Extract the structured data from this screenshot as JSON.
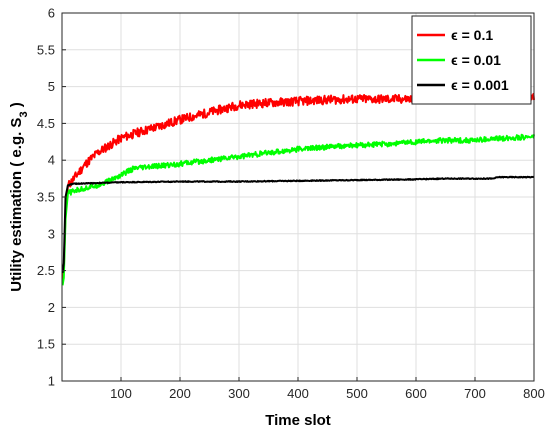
{
  "chart_data": {
    "type": "line",
    "xlabel": "Time slot",
    "ylabel_main": "Utility estimation ( e.g. S",
    "ylabel_sub": "3",
    "ylabel_end": " )",
    "xlim": [
      0,
      800
    ],
    "ylim": [
      1,
      6
    ],
    "xticks": [
      100,
      200,
      300,
      400,
      500,
      600,
      700,
      800
    ],
    "yticks": [
      1,
      1.5,
      2,
      2.5,
      3,
      3.5,
      4,
      4.5,
      5,
      5.5,
      6
    ],
    "grid": true,
    "legend_position": "top-right",
    "series": [
      {
        "name": "ϵ = 0.1",
        "color": "#ff0000",
        "noise": 0.06,
        "points": [
          [
            0,
            2.3
          ],
          [
            3,
            2.5
          ],
          [
            6,
            3.3
          ],
          [
            10,
            3.65
          ],
          [
            20,
            3.75
          ],
          [
            40,
            3.95
          ],
          [
            60,
            4.1
          ],
          [
            80,
            4.2
          ],
          [
            100,
            4.3
          ],
          [
            130,
            4.38
          ],
          [
            160,
            4.45
          ],
          [
            200,
            4.55
          ],
          [
            250,
            4.65
          ],
          [
            300,
            4.75
          ],
          [
            350,
            4.78
          ],
          [
            400,
            4.8
          ],
          [
            450,
            4.82
          ],
          [
            500,
            4.83
          ],
          [
            550,
            4.83
          ],
          [
            600,
            4.83
          ],
          [
            650,
            4.84
          ],
          [
            700,
            4.84
          ],
          [
            750,
            4.85
          ],
          [
            800,
            4.85
          ]
        ]
      },
      {
        "name": "ϵ = 0.01",
        "color": "#00ff00",
        "noise": 0.035,
        "points": [
          [
            0,
            2.25
          ],
          [
            3,
            2.4
          ],
          [
            6,
            3.2
          ],
          [
            10,
            3.55
          ],
          [
            20,
            3.58
          ],
          [
            40,
            3.62
          ],
          [
            60,
            3.66
          ],
          [
            80,
            3.72
          ],
          [
            100,
            3.8
          ],
          [
            120,
            3.88
          ],
          [
            140,
            3.9
          ],
          [
            200,
            3.95
          ],
          [
            250,
            4.0
          ],
          [
            300,
            4.05
          ],
          [
            350,
            4.1
          ],
          [
            400,
            4.15
          ],
          [
            450,
            4.18
          ],
          [
            500,
            4.2
          ],
          [
            550,
            4.22
          ],
          [
            600,
            4.25
          ],
          [
            650,
            4.27
          ],
          [
            700,
            4.27
          ],
          [
            750,
            4.3
          ],
          [
            800,
            4.32
          ]
        ]
      },
      {
        "name": "ϵ = 0.001",
        "color": "#000000",
        "noise": 0.006,
        "points": [
          [
            0,
            2.4
          ],
          [
            3,
            2.6
          ],
          [
            6,
            3.5
          ],
          [
            10,
            3.66
          ],
          [
            20,
            3.68
          ],
          [
            60,
            3.69
          ],
          [
            100,
            3.7
          ],
          [
            200,
            3.71
          ],
          [
            300,
            3.71
          ],
          [
            400,
            3.72
          ],
          [
            500,
            3.73
          ],
          [
            600,
            3.74
          ],
          [
            650,
            3.75
          ],
          [
            700,
            3.75
          ],
          [
            730,
            3.75
          ],
          [
            740,
            3.77
          ],
          [
            760,
            3.77
          ],
          [
            800,
            3.77
          ]
        ]
      }
    ]
  }
}
